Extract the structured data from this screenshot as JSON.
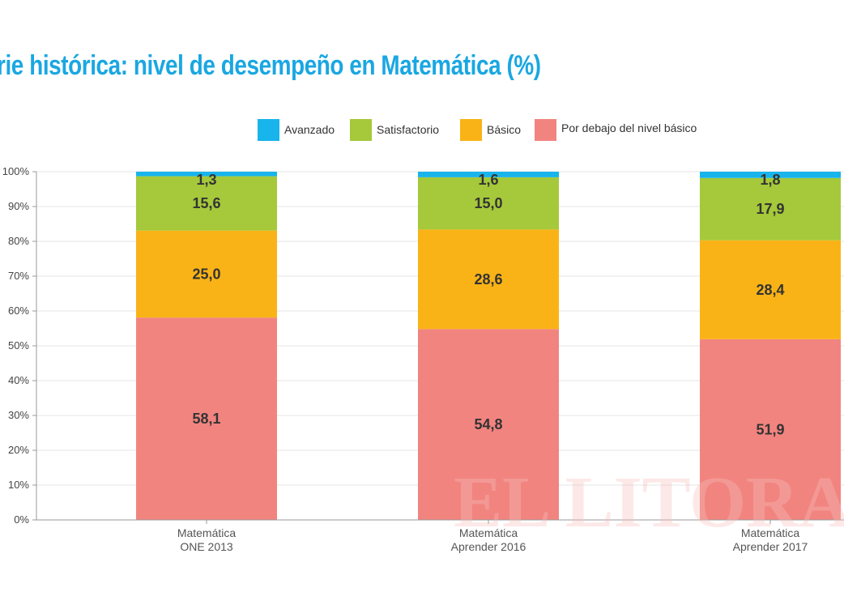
{
  "chart_data": {
    "type": "bar",
    "stacked": true,
    "title": "rie histórica: nivel de desempeño en Matemática (%)",
    "categories": [
      [
        "Matemática",
        "ONE 2013"
      ],
      [
        "Matemática",
        "Aprender 2016"
      ],
      [
        "Matemática",
        "Aprender 2017"
      ]
    ],
    "series": [
      {
        "name": "Por debajo del nivel básico",
        "color": "#f28480",
        "values": [
          58.1,
          54.8,
          51.9
        ],
        "labels": [
          "58,1",
          "54,8",
          "51,9"
        ]
      },
      {
        "name": "Básico",
        "color": "#f9b316",
        "values": [
          25.0,
          28.6,
          28.4
        ],
        "labels": [
          "25,0",
          "28,6",
          "28,4"
        ]
      },
      {
        "name": "Satisfactorio",
        "color": "#a5c93a",
        "values": [
          15.6,
          15.0,
          17.9
        ],
        "labels": [
          "15,6",
          "15,0",
          "17,9"
        ]
      },
      {
        "name": "Avanzado",
        "color": "#18b4ec",
        "values": [
          1.3,
          1.6,
          1.8
        ],
        "labels": [
          "1,3",
          "1,6",
          "1,8"
        ]
      }
    ],
    "legend_order": [
      "Avanzado",
      "Satisfactorio",
      "Básico",
      "Por debajo del nivel básico"
    ],
    "legend_position": "top-right",
    "ylim": [
      0,
      100
    ],
    "yticks": [
      "0%",
      "10%",
      "20%",
      "30%",
      "40%",
      "50%",
      "60%",
      "70%",
      "80%",
      "90%",
      "100%"
    ],
    "grid": true,
    "watermark": "EL LITORAL"
  }
}
